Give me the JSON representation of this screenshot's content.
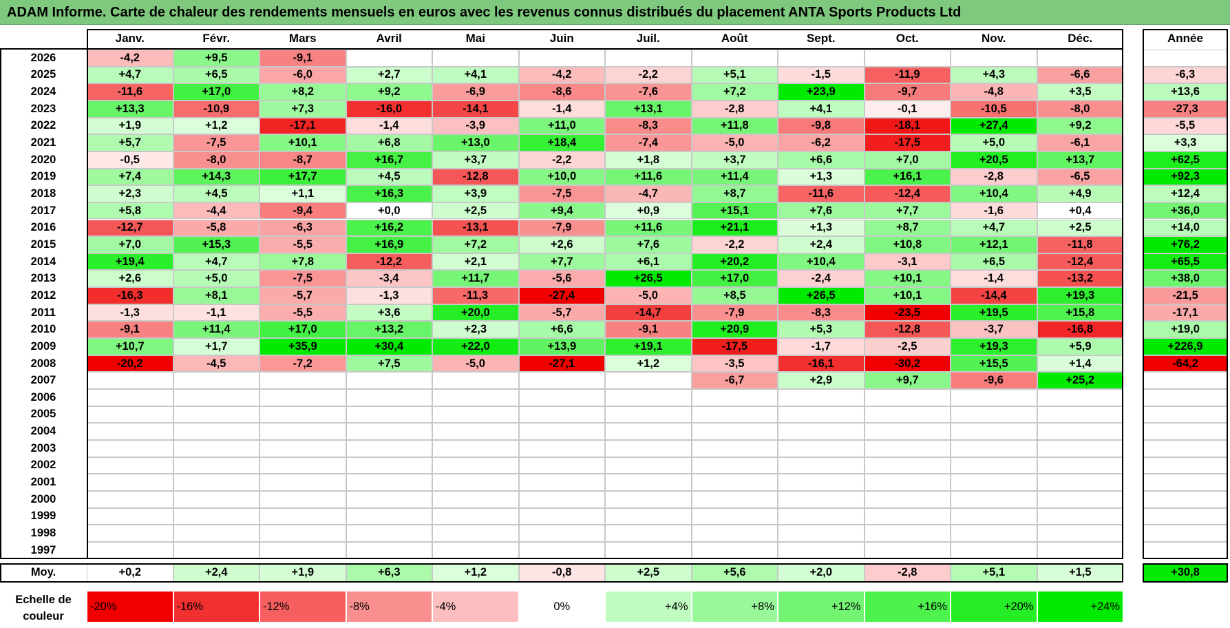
{
  "title": "ADAM Informe. Carte de chaleur des rendements mensuels en euros avec les revenus connus distribués du placement ANTA Sports Products Ltd",
  "chart_data": {
    "type": "heatmap",
    "title": "ADAM Informe. Carte de chaleur des rendements mensuels en euros avec les revenus connus distribués du placement ANTA Sports Products Ltd",
    "months": [
      "Janv.",
      "Févr.",
      "Mars",
      "Avril",
      "Mai",
      "Juin",
      "Juil.",
      "Août",
      "Sept.",
      "Oct.",
      "Nov.",
      "Déc."
    ],
    "year_header": "Année",
    "rows": [
      {
        "year": "2026",
        "values": [
          "-4,2",
          "+9,5",
          "-9,1",
          "",
          "",
          "",
          "",
          "",
          "",
          "",
          "",
          ""
        ],
        "annual": ""
      },
      {
        "year": "2025",
        "values": [
          "+4,7",
          "+6,5",
          "-6,0",
          "+2,7",
          "+4,1",
          "-4,2",
          "-2,2",
          "+5,1",
          "-1,5",
          "-11,9",
          "+4,3",
          "-6,6"
        ],
        "annual": "-6,3"
      },
      {
        "year": "2024",
        "values": [
          "-11,6",
          "+17,0",
          "+8,2",
          "+9,2",
          "-6,9",
          "-8,6",
          "-7,6",
          "+7,2",
          "+23,9",
          "-9,7",
          "-4,8",
          "+3,5"
        ],
        "annual": "+13,6"
      },
      {
        "year": "2023",
        "values": [
          "+13,3",
          "-10,9",
          "+7,3",
          "-16,0",
          "-14,1",
          "-1,4",
          "+13,1",
          "-2,8",
          "+4,1",
          "-0,1",
          "-10,5",
          "-8,0"
        ],
        "annual": "-27,3"
      },
      {
        "year": "2022",
        "values": [
          "+1,9",
          "+1,2",
          "-17,1",
          "-1,4",
          "-3,9",
          "+11,0",
          "-8,3",
          "+11,8",
          "-9,8",
          "-18,1",
          "+27,4",
          "+9,2"
        ],
        "annual": "-5,5"
      },
      {
        "year": "2021",
        "values": [
          "+5,7",
          "-7,5",
          "+10,1",
          "+6,8",
          "+13,0",
          "+18,4",
          "-7,4",
          "-5,0",
          "-6,2",
          "-17,5",
          "+5,0",
          "-6,1"
        ],
        "annual": "+3,3"
      },
      {
        "year": "2020",
        "values": [
          "-0,5",
          "-8,0",
          "-8,7",
          "+16,7",
          "+3,7",
          "-2,2",
          "+1,8",
          "+3,7",
          "+6,6",
          "+7,0",
          "+20,5",
          "+13,7"
        ],
        "annual": "+62,5"
      },
      {
        "year": "2019",
        "values": [
          "+7,4",
          "+14,3",
          "+17,7",
          "+4,5",
          "-12,8",
          "+10,0",
          "+11,6",
          "+11,4",
          "+1,3",
          "+16,1",
          "-2,8",
          "-6,5"
        ],
        "annual": "+92,3"
      },
      {
        "year": "2018",
        "values": [
          "+2,3",
          "+4,5",
          "+1,1",
          "+16,3",
          "+3,9",
          "-7,5",
          "-4,7",
          "+8,7",
          "-11,6",
          "-12,4",
          "+10,4",
          "+4,9"
        ],
        "annual": "+12,4"
      },
      {
        "year": "2017",
        "values": [
          "+5,8",
          "-4,4",
          "-9,4",
          "+0,0",
          "+2,5",
          "+9,4",
          "+0,9",
          "+15,1",
          "+7,6",
          "+7,7",
          "-1,6",
          "+0,4"
        ],
        "annual": "+36,0"
      },
      {
        "year": "2016",
        "values": [
          "-12,7",
          "-5,8",
          "-6,3",
          "+16,2",
          "-13,1",
          "-7,9",
          "+11,6",
          "+21,1",
          "+1,3",
          "+8,7",
          "+4,7",
          "+2,5"
        ],
        "annual": "+14,0"
      },
      {
        "year": "2015",
        "values": [
          "+7,0",
          "+15,3",
          "-5,5",
          "+16,9",
          "+7,2",
          "+2,6",
          "+7,6",
          "-2,2",
          "+2,4",
          "+10,8",
          "+12,1",
          "-11,8"
        ],
        "annual": "+76,2"
      },
      {
        "year": "2014",
        "values": [
          "+19,4",
          "+4,7",
          "+7,8",
          "-12,2",
          "+2,1",
          "+7,7",
          "+6,1",
          "+20,2",
          "+10,4",
          "-3,1",
          "+6,5",
          "-12,4"
        ],
        "annual": "+65,5"
      },
      {
        "year": "2013",
        "values": [
          "+2,6",
          "+5,0",
          "-7,5",
          "-3,4",
          "+11,7",
          "-5,6",
          "+26,5",
          "+17,0",
          "-2,4",
          "+10,1",
          "-1,4",
          "-13,2"
        ],
        "annual": "+38,0"
      },
      {
        "year": "2012",
        "values": [
          "-16,3",
          "+8,1",
          "-5,7",
          "-1,3",
          "-11,3",
          "-27,4",
          "-5,0",
          "+8,5",
          "+26,5",
          "+10,1",
          "-14,4",
          "+19,3"
        ],
        "annual": "-21,5"
      },
      {
        "year": "2011",
        "values": [
          "-1,3",
          "-1,1",
          "-5,5",
          "+3,6",
          "+20,0",
          "-5,7",
          "-14,7",
          "-7,9",
          "-8,3",
          "-23,5",
          "+19,5",
          "+15,8"
        ],
        "annual": "-17,1"
      },
      {
        "year": "2010",
        "values": [
          "-9,1",
          "+11,4",
          "+17,0",
          "+13,2",
          "+2,3",
          "+6,6",
          "-9,1",
          "+20,9",
          "+5,3",
          "-12,8",
          "-3,7",
          "-16,8"
        ],
        "annual": "+19,0"
      },
      {
        "year": "2009",
        "values": [
          "+10,7",
          "+1,7",
          "+35,9",
          "+30,4",
          "+22,0",
          "+13,9",
          "+19,1",
          "-17,5",
          "-1,7",
          "-2,5",
          "+19,3",
          "+5,9"
        ],
        "annual": "+226,9"
      },
      {
        "year": "2008",
        "values": [
          "-20,2",
          "-4,5",
          "-7,2",
          "+7,5",
          "-5,0",
          "-27,1",
          "+1,2",
          "-3,5",
          "-16,1",
          "-30,2",
          "+15,5",
          "+1,4"
        ],
        "annual": "-64,2"
      },
      {
        "year": "2007",
        "values": [
          "",
          "",
          "",
          "",
          "",
          "",
          "",
          "-6,7",
          "+2,9",
          "+9,7",
          "-9,6",
          "+25,2"
        ],
        "annual": ""
      },
      {
        "year": "2006",
        "values": [
          "",
          "",
          "",
          "",
          "",
          "",
          "",
          "",
          "",
          "",
          "",
          ""
        ],
        "annual": ""
      },
      {
        "year": "2005",
        "values": [
          "",
          "",
          "",
          "",
          "",
          "",
          "",
          "",
          "",
          "",
          "",
          ""
        ],
        "annual": ""
      },
      {
        "year": "2004",
        "values": [
          "",
          "",
          "",
          "",
          "",
          "",
          "",
          "",
          "",
          "",
          "",
          ""
        ],
        "annual": ""
      },
      {
        "year": "2003",
        "values": [
          "",
          "",
          "",
          "",
          "",
          "",
          "",
          "",
          "",
          "",
          "",
          ""
        ],
        "annual": ""
      },
      {
        "year": "2002",
        "values": [
          "",
          "",
          "",
          "",
          "",
          "",
          "",
          "",
          "",
          "",
          "",
          ""
        ],
        "annual": ""
      },
      {
        "year": "2001",
        "values": [
          "",
          "",
          "",
          "",
          "",
          "",
          "",
          "",
          "",
          "",
          "",
          ""
        ],
        "annual": ""
      },
      {
        "year": "2000",
        "values": [
          "",
          "",
          "",
          "",
          "",
          "",
          "",
          "",
          "",
          "",
          "",
          ""
        ],
        "annual": ""
      },
      {
        "year": "1999",
        "values": [
          "",
          "",
          "",
          "",
          "",
          "",
          "",
          "",
          "",
          "",
          "",
          ""
        ],
        "annual": ""
      },
      {
        "year": "1998",
        "values": [
          "",
          "",
          "",
          "",
          "",
          "",
          "",
          "",
          "",
          "",
          "",
          ""
        ],
        "annual": ""
      },
      {
        "year": "1997",
        "values": [
          "",
          "",
          "",
          "",
          "",
          "",
          "",
          "",
          "",
          "",
          "",
          ""
        ],
        "annual": ""
      }
    ],
    "average": {
      "label": "Moy.",
      "values": [
        "+0,2",
        "+2,4",
        "+1,9",
        "+6,3",
        "+1,2",
        "-0,8",
        "+2,5",
        "+5,6",
        "+2,0",
        "-2,8",
        "+5,1",
        "+1,5"
      ],
      "annual": "+30,8"
    },
    "legend": {
      "label": "Echelle de\ncouleur",
      "stops": [
        "-20%",
        "-16%",
        "-12%",
        "-8%",
        "-4%",
        "0%",
        "+4%",
        "+8%",
        "+12%",
        "+16%",
        "+20%",
        "+24%"
      ]
    }
  }
}
